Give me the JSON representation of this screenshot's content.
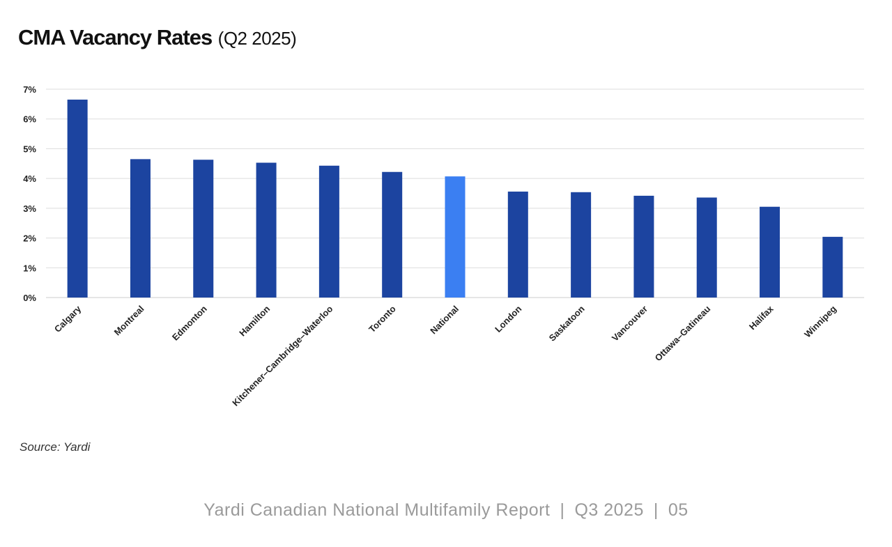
{
  "page": {
    "title_main": "CMA Vacancy Rates",
    "title_sub": "(Q2 2025)",
    "source": "Source: Yardi",
    "footer": {
      "report": "Yardi Canadian National Multifamily Report",
      "separator": "|",
      "period": "Q3 2025",
      "page_number": "05"
    }
  },
  "colors": {
    "bar": "#1c44a0",
    "highlight": "#3b7ff2",
    "grid": "#dddddd",
    "axis": "#cccccc"
  },
  "chart_data": {
    "type": "bar",
    "title": "CMA Vacancy Rates (Q2 2025)",
    "xlabel": "",
    "ylabel": "",
    "ylim": [
      0,
      7
    ],
    "yticks": [
      0,
      1,
      2,
      3,
      4,
      5,
      6,
      7
    ],
    "ytick_labels": [
      "0%",
      "1%",
      "2%",
      "3%",
      "4%",
      "5%",
      "6%",
      "7%"
    ],
    "grid": true,
    "legend": "none",
    "categories": [
      "Calgary",
      "Montreal",
      "Edmonton",
      "Hamilton",
      "Kitchener–Cambridge–Waterloo",
      "Toronto",
      "National",
      "London",
      "Saskatoon",
      "Vancouver",
      "Ottawa–Gatineau",
      "Halifax",
      "Winnipeg"
    ],
    "values": [
      6.65,
      4.65,
      4.63,
      4.53,
      4.43,
      4.22,
      4.07,
      3.56,
      3.54,
      3.42,
      3.36,
      3.05,
      2.04
    ],
    "highlight_category": "National"
  }
}
